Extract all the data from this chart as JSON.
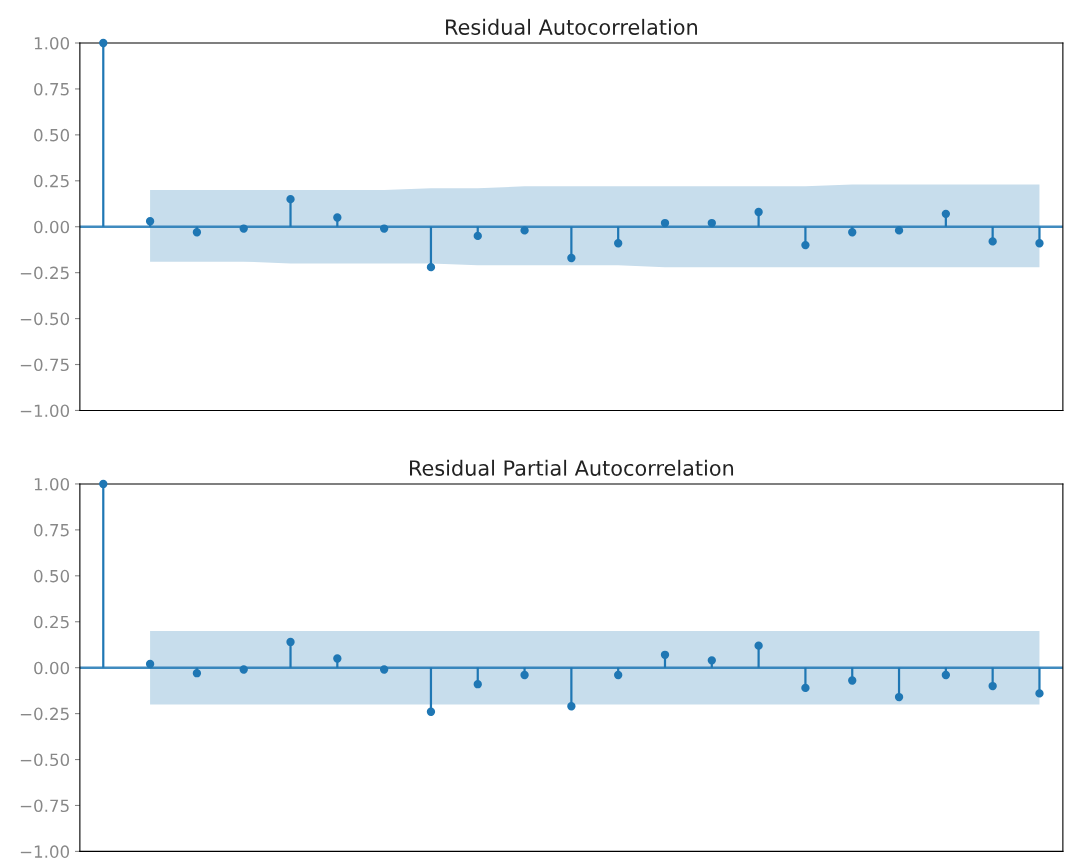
{
  "chart_data": [
    {
      "type": "lollipop",
      "title": "Residual Autocorrelation",
      "categories": [
        null,
        null,
        null,
        null,
        null,
        null,
        null,
        null,
        null,
        null,
        null,
        null,
        null,
        null,
        null,
        null,
        null,
        null,
        null,
        null,
        null
      ],
      "ylim": [
        -1,
        1
      ],
      "yticks": [
        {
          "value": -1,
          "label": "−1.00"
        },
        {
          "value": -0.75,
          "label": "−0.75"
        },
        {
          "value": -0.5,
          "label": "−0.50"
        },
        {
          "value": -0.25,
          "label": "−0.25"
        },
        {
          "value": 0,
          "label": "0.00"
        },
        {
          "value": 0.25,
          "label": "0.25"
        },
        {
          "value": 0.5,
          "label": "0.50"
        },
        {
          "value": 0.75,
          "label": "0.75"
        },
        {
          "value": 1,
          "label": "1.00"
        }
      ],
      "tick_labels": "y",
      "marker": "circle",
      "grid": false,
      "ref_lines": [
        {
          "axis": "y",
          "value": 0,
          "color": "#1f77b4"
        }
      ],
      "series": [
        {
          "color": "#1f77b4",
          "values": [
            1.0,
            0.03,
            -0.03,
            -0.01,
            0.15,
            0.05,
            -0.01,
            -0.22,
            -0.05,
            -0.02,
            -0.17,
            -0.09,
            0.02,
            0.02,
            0.08,
            -0.1,
            -0.03,
            -0.02,
            0.07,
            -0.08,
            -0.09
          ],
          "lower": [
            null,
            -0.19,
            -0.19,
            -0.19,
            -0.2,
            -0.2,
            -0.2,
            -0.2,
            -0.21,
            -0.21,
            -0.21,
            -0.21,
            -0.22,
            -0.22,
            -0.22,
            -0.22,
            -0.22,
            -0.22,
            -0.22,
            -0.22,
            -0.22
          ],
          "upper": [
            null,
            0.2,
            0.2,
            0.2,
            0.2,
            0.2,
            0.2,
            0.21,
            0.21,
            0.22,
            0.22,
            0.22,
            0.22,
            0.22,
            0.22,
            0.22,
            0.23,
            0.23,
            0.23,
            0.23,
            0.23
          ]
        }
      ]
    },
    {
      "type": "lollipop",
      "title": "Residual Partial Autocorrelation",
      "categories": [
        null,
        null,
        null,
        null,
        null,
        null,
        null,
        null,
        null,
        null,
        null,
        null,
        null,
        null,
        null,
        null,
        null,
        null,
        null,
        null,
        null
      ],
      "ylim": [
        -1,
        1
      ],
      "yticks": [
        {
          "value": -1,
          "label": "−1.00"
        },
        {
          "value": -0.75,
          "label": "−0.75"
        },
        {
          "value": -0.5,
          "label": "−0.50"
        },
        {
          "value": -0.25,
          "label": "−0.25"
        },
        {
          "value": 0,
          "label": "0.00"
        },
        {
          "value": 0.25,
          "label": "0.25"
        },
        {
          "value": 0.5,
          "label": "0.50"
        },
        {
          "value": 0.75,
          "label": "0.75"
        },
        {
          "value": 1,
          "label": "1.00"
        }
      ],
      "tick_labels": "y",
      "marker": "circle",
      "grid": false,
      "ref_lines": [
        {
          "axis": "y",
          "value": 0,
          "color": "#1f77b4"
        }
      ],
      "series": [
        {
          "color": "#1f77b4",
          "values": [
            1.0,
            0.02,
            -0.03,
            -0.01,
            0.14,
            0.05,
            -0.01,
            -0.24,
            -0.09,
            -0.04,
            -0.21,
            -0.04,
            0.07,
            0.04,
            0.12,
            -0.11,
            -0.07,
            -0.16,
            -0.04,
            -0.1,
            -0.14
          ],
          "lower": [
            null,
            -0.2,
            -0.2,
            -0.2,
            -0.2,
            -0.2,
            -0.2,
            -0.2,
            -0.2,
            -0.2,
            -0.2,
            -0.2,
            -0.2,
            -0.2,
            -0.2,
            -0.2,
            -0.2,
            -0.2,
            -0.2,
            -0.2,
            -0.2
          ],
          "upper": [
            null,
            0.2,
            0.2,
            0.2,
            0.2,
            0.2,
            0.2,
            0.2,
            0.2,
            0.2,
            0.2,
            0.2,
            0.2,
            0.2,
            0.2,
            0.2,
            0.2,
            0.2,
            0.2,
            0.2,
            0.2
          ]
        }
      ]
    }
  ]
}
